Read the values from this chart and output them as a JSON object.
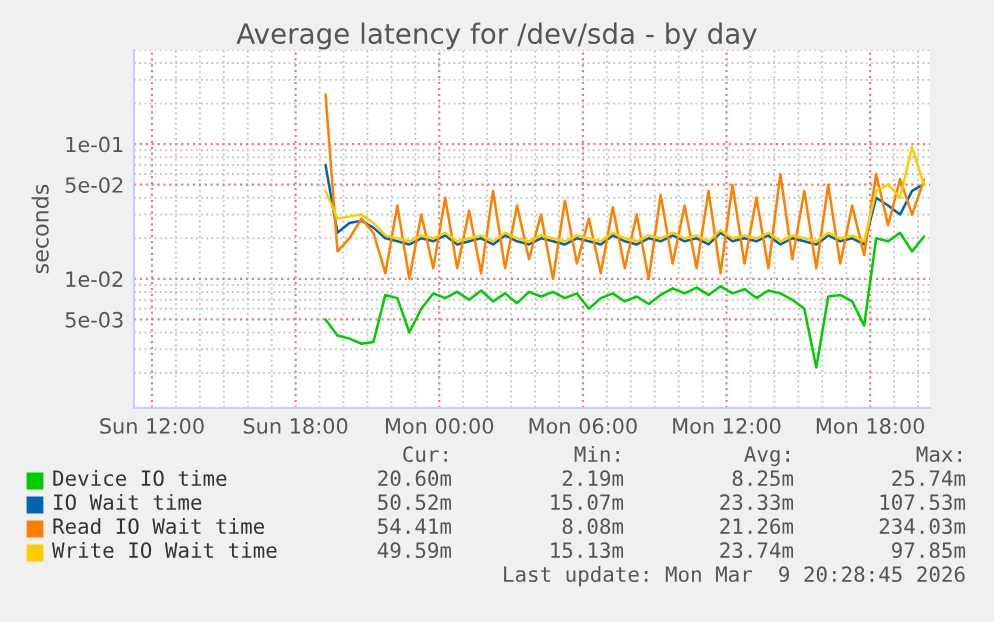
{
  "chart_data": {
    "type": "line",
    "title": "Average latency for /dev/sda - by day",
    "ylabel": "seconds",
    "x": [
      "2026-03-08T19:15",
      "2026-03-08T19:45",
      "2026-03-08T20:15",
      "2026-03-08T20:45",
      "2026-03-08T21:15",
      "2026-03-08T21:45",
      "2026-03-08T22:15",
      "2026-03-08T22:45",
      "2026-03-08T23:15",
      "2026-03-08T23:45",
      "2026-03-09T00:15",
      "2026-03-09T00:45",
      "2026-03-09T01:15",
      "2026-03-09T01:45",
      "2026-03-09T02:15",
      "2026-03-09T02:45",
      "2026-03-09T03:15",
      "2026-03-09T03:45",
      "2026-03-09T04:15",
      "2026-03-09T04:45",
      "2026-03-09T05:15",
      "2026-03-09T05:45",
      "2026-03-09T06:15",
      "2026-03-09T06:45",
      "2026-03-09T07:15",
      "2026-03-09T07:45",
      "2026-03-09T08:15",
      "2026-03-09T08:45",
      "2026-03-09T09:15",
      "2026-03-09T09:45",
      "2026-03-09T10:15",
      "2026-03-09T10:45",
      "2026-03-09T11:15",
      "2026-03-09T11:45",
      "2026-03-09T12:15",
      "2026-03-09T12:45",
      "2026-03-09T13:15",
      "2026-03-09T13:45",
      "2026-03-09T14:15",
      "2026-03-09T14:45",
      "2026-03-09T15:15",
      "2026-03-09T15:45",
      "2026-03-09T16:15",
      "2026-03-09T16:45",
      "2026-03-09T17:15",
      "2026-03-09T17:45",
      "2026-03-09T18:15",
      "2026-03-09T18:45",
      "2026-03-09T19:15",
      "2026-03-09T19:45",
      "2026-03-09T20:15"
    ],
    "series": [
      {
        "name": "Device IO time",
        "color": "#00cc00",
        "values": [
          0.005,
          0.0038,
          0.0036,
          0.0033,
          0.0034,
          0.0076,
          0.0072,
          0.004,
          0.006,
          0.0078,
          0.0072,
          0.008,
          0.007,
          0.0082,
          0.0068,
          0.0078,
          0.0066,
          0.008,
          0.0074,
          0.008,
          0.0072,
          0.0078,
          0.006,
          0.0072,
          0.0078,
          0.0068,
          0.0074,
          0.0065,
          0.0076,
          0.0085,
          0.0078,
          0.0086,
          0.0076,
          0.0088,
          0.0078,
          0.0084,
          0.0072,
          0.0082,
          0.0078,
          0.007,
          0.006,
          0.0022,
          0.0074,
          0.0076,
          0.0068,
          0.0045,
          0.02,
          0.019,
          0.022,
          0.016,
          0.0206
        ]
      },
      {
        "name": "IO Wait time",
        "color": "#0066b3",
        "values": [
          0.07,
          0.022,
          0.026,
          0.027,
          0.024,
          0.02,
          0.019,
          0.018,
          0.02,
          0.019,
          0.021,
          0.018,
          0.019,
          0.02,
          0.018,
          0.021,
          0.019,
          0.018,
          0.02,
          0.019,
          0.018,
          0.02,
          0.019,
          0.018,
          0.021,
          0.019,
          0.018,
          0.02,
          0.019,
          0.021,
          0.019,
          0.02,
          0.018,
          0.022,
          0.019,
          0.02,
          0.019,
          0.021,
          0.018,
          0.02,
          0.019,
          0.018,
          0.021,
          0.019,
          0.02,
          0.018,
          0.04,
          0.035,
          0.03,
          0.045,
          0.0505
        ]
      },
      {
        "name": "Read IO Wait time",
        "color": "#ff8000",
        "values": [
          0.234,
          0.016,
          0.02,
          0.028,
          0.022,
          0.011,
          0.035,
          0.01,
          0.03,
          0.012,
          0.04,
          0.012,
          0.032,
          0.011,
          0.045,
          0.012,
          0.035,
          0.014,
          0.03,
          0.01,
          0.038,
          0.013,
          0.028,
          0.011,
          0.034,
          0.012,
          0.03,
          0.01,
          0.042,
          0.013,
          0.035,
          0.012,
          0.045,
          0.011,
          0.05,
          0.013,
          0.04,
          0.012,
          0.06,
          0.014,
          0.045,
          0.012,
          0.05,
          0.013,
          0.035,
          0.015,
          0.06,
          0.025,
          0.055,
          0.03,
          0.0544
        ]
      },
      {
        "name": "Write IO Wait time",
        "color": "#ffcc00",
        "values": [
          0.045,
          0.028,
          0.029,
          0.03,
          0.026,
          0.021,
          0.02,
          0.019,
          0.021,
          0.02,
          0.022,
          0.019,
          0.02,
          0.021,
          0.019,
          0.022,
          0.02,
          0.019,
          0.021,
          0.02,
          0.019,
          0.021,
          0.02,
          0.019,
          0.022,
          0.02,
          0.019,
          0.021,
          0.02,
          0.022,
          0.02,
          0.021,
          0.019,
          0.023,
          0.02,
          0.021,
          0.02,
          0.022,
          0.019,
          0.021,
          0.02,
          0.019,
          0.022,
          0.02,
          0.021,
          0.019,
          0.045,
          0.05,
          0.04,
          0.095,
          0.0496
        ]
      }
    ],
    "log": "y",
    "xlim": [
      "2026-03-08T11:15",
      "2026-03-09T20:30"
    ],
    "ylim": [
      0.0011,
      0.5
    ],
    "xticks": [
      {
        "value": "2026-03-08T12:00",
        "label": "Sun 12:00"
      },
      {
        "value": "2026-03-08T18:00",
        "label": "Sun 18:00"
      },
      {
        "value": "2026-03-09T00:00",
        "label": "Mon 00:00"
      },
      {
        "value": "2026-03-09T06:00",
        "label": "Mon 06:00"
      },
      {
        "value": "2026-03-09T12:00",
        "label": "Mon 12:00"
      },
      {
        "value": "2026-03-09T18:00",
        "label": "Mon 18:00"
      }
    ],
    "yticks": [
      {
        "value": 0.005,
        "label": "5e-03"
      },
      {
        "value": 0.01,
        "label": "1e-02"
      },
      {
        "value": 0.05,
        "label": "5e-02"
      },
      {
        "value": 0.1,
        "label": "1e-01"
      }
    ],
    "grid": true,
    "legend": "bottom",
    "marker": "none",
    "line_style": "solid",
    "annotations": [
      "Cur:",
      "Min:",
      "Avg:",
      "Max:",
      "20.60m",
      "2.19m",
      "8.25m",
      "25.74m",
      "50.52m",
      "15.07m",
      "23.33m",
      "107.53m",
      "54.41m",
      "8.08m",
      "21.26m",
      "234.03m",
      "49.59m",
      "15.13m",
      "23.74m",
      "97.85m",
      "Last update: Mon Mar  9 20:28:45 2026"
    ]
  }
}
